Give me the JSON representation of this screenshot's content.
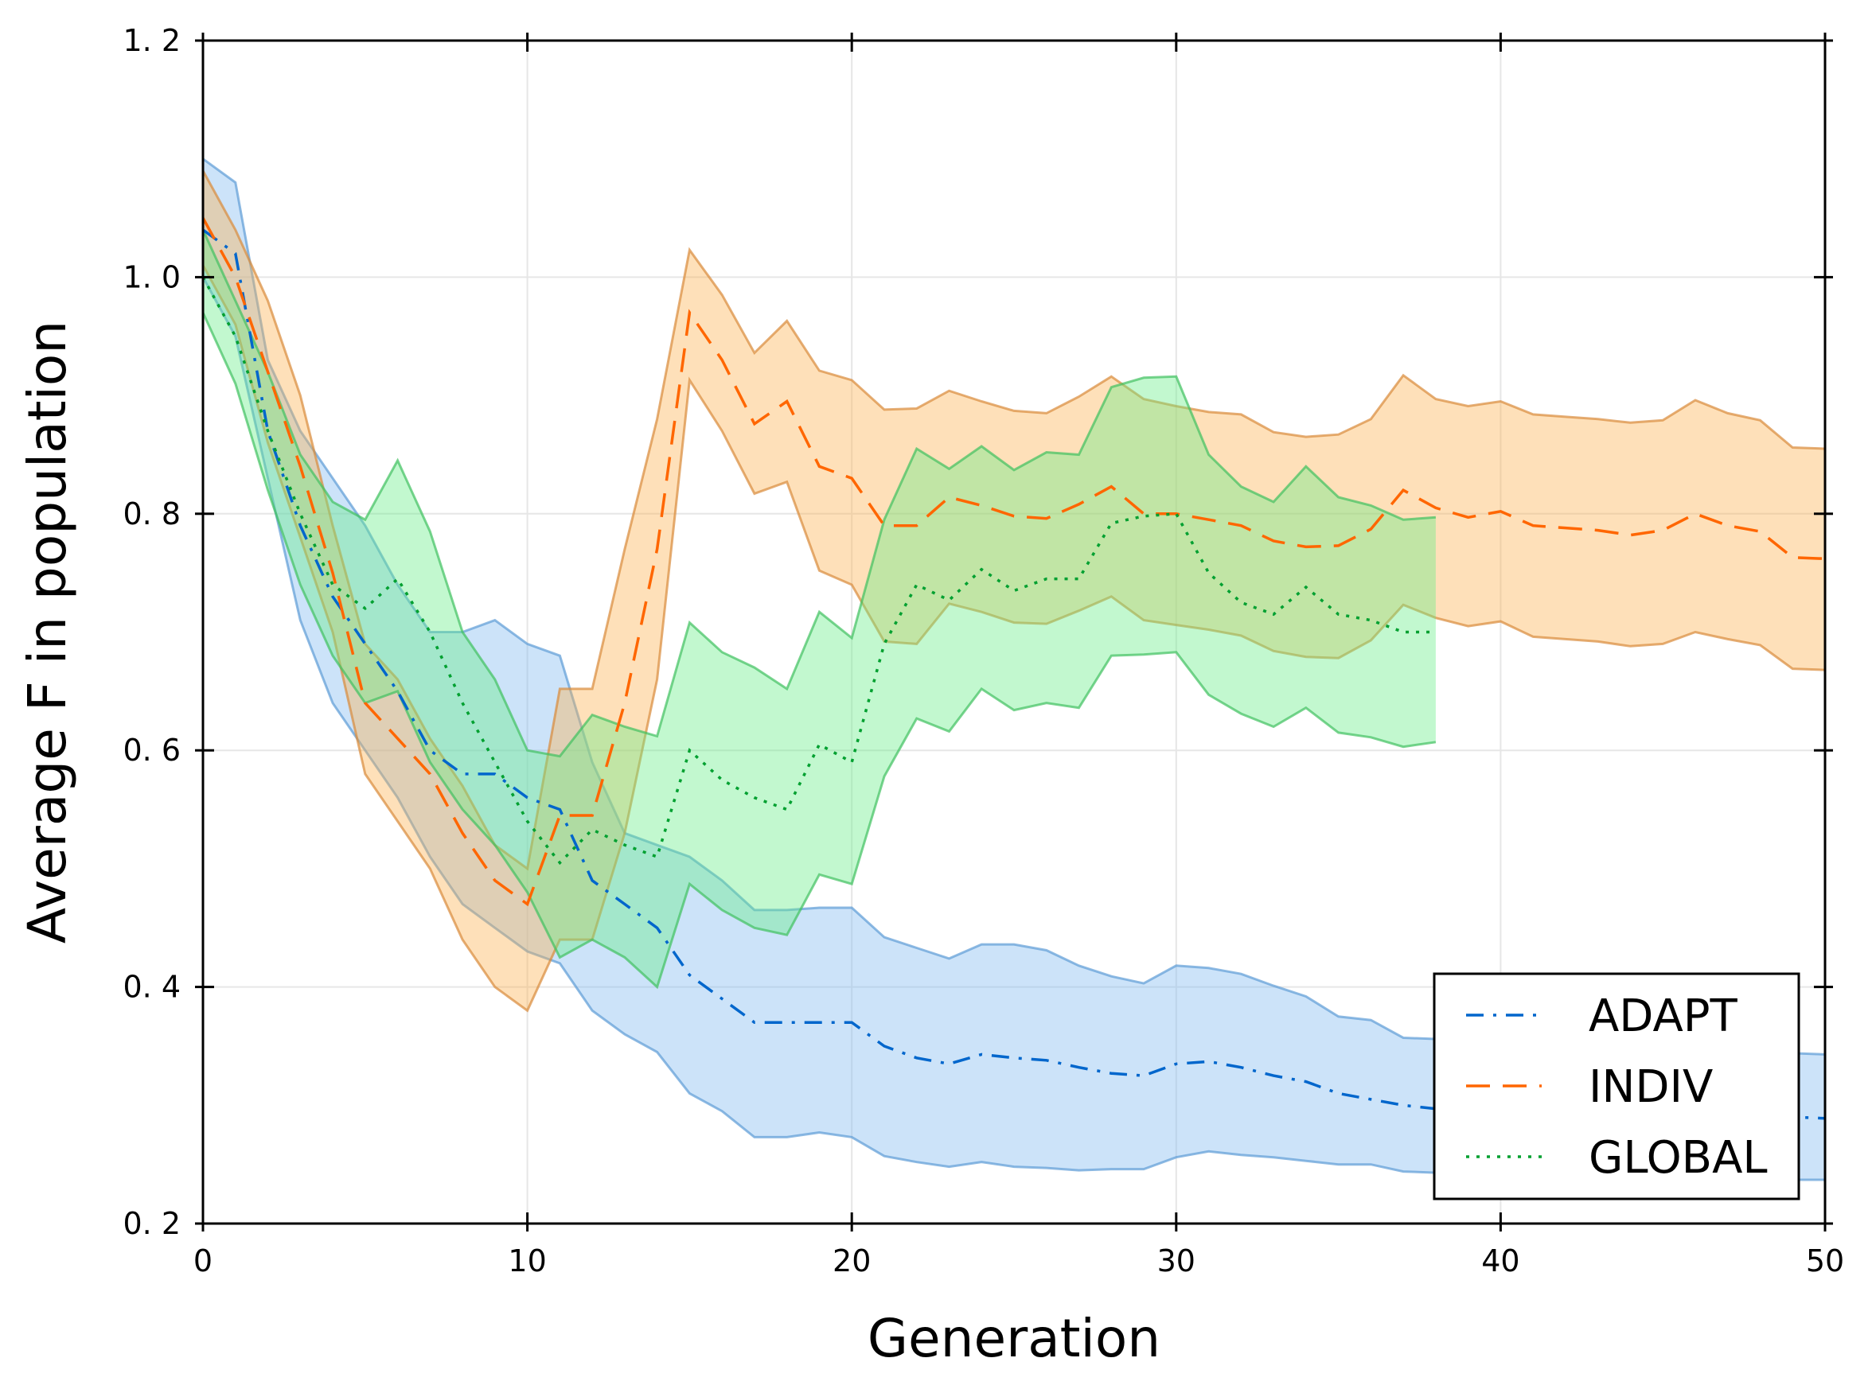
{
  "chart_data": {
    "type": "line",
    "title": "",
    "xlabel": "Generation",
    "ylabel": "Average F in population",
    "xlim": [
      0,
      50
    ],
    "ylim": [
      0.2,
      1.2
    ],
    "xticks": [
      0,
      10,
      20,
      30,
      40,
      50
    ],
    "xtick_labels": [
      "0",
      "10",
      "20",
      "30",
      "40",
      "50"
    ],
    "yticks": [
      0.2,
      0.4,
      0.6,
      0.8,
      1.0,
      1.2
    ],
    "ytick_labels": [
      "0. 2",
      "0. 4",
      "0. 6",
      "0. 8",
      "1. 0",
      "1. 2"
    ],
    "grid": true,
    "legend_position": "lower-right",
    "series": [
      {
        "name": "ADAPT",
        "color": "#0066cc",
        "band_color": "#7fb8f0",
        "band_edge_color": "#5c9bd5",
        "line_style": "dashdot",
        "x": [
          0,
          1,
          2,
          3,
          4,
          5,
          6,
          7,
          8,
          9,
          10,
          11,
          12,
          13,
          14,
          15,
          16,
          17,
          18,
          19,
          20,
          21,
          22,
          23,
          24,
          25,
          26,
          27,
          28,
          29,
          30,
          31,
          32,
          33,
          34,
          35,
          36,
          37,
          38,
          39,
          40,
          41,
          42,
          43,
          44,
          45,
          46,
          47,
          48,
          49,
          50
        ],
        "y": [
          1.04,
          1.02,
          0.87,
          0.79,
          0.73,
          0.69,
          0.65,
          0.6,
          0.58,
          0.58,
          0.56,
          0.55,
          0.49,
          0.47,
          0.45,
          0.41,
          0.39,
          0.37,
          0.37,
          0.37,
          0.37,
          0.35,
          0.34,
          0.335,
          0.343,
          0.34,
          0.338,
          0.332,
          0.327,
          0.325,
          0.335,
          0.337,
          0.332,
          0.325,
          0.32,
          0.31,
          0.305,
          0.3,
          0.297,
          0.296,
          0.295,
          0.294,
          0.293,
          0.293,
          0.292,
          0.292,
          0.291,
          0.291,
          0.29,
          0.29,
          0.289
        ],
        "upper": [
          1.1,
          1.08,
          0.93,
          0.87,
          0.83,
          0.79,
          0.74,
          0.7,
          0.7,
          0.71,
          0.69,
          0.68,
          0.59,
          0.53,
          0.52,
          0.51,
          0.49,
          0.465,
          0.465,
          0.467,
          0.467,
          0.442,
          0.433,
          0.424,
          0.436,
          0.436,
          0.431,
          0.418,
          0.409,
          0.403,
          0.418,
          0.416,
          0.411,
          0.401,
          0.392,
          0.375,
          0.372,
          0.357,
          0.356,
          0.355,
          0.354,
          0.352,
          0.351,
          0.35,
          0.349,
          0.348,
          0.347,
          0.346,
          0.345,
          0.344,
          0.343
        ],
        "lower": [
          1.0,
          0.95,
          0.83,
          0.71,
          0.64,
          0.6,
          0.56,
          0.51,
          0.47,
          0.45,
          0.43,
          0.42,
          0.38,
          0.36,
          0.345,
          0.31,
          0.295,
          0.273,
          0.273,
          0.277,
          0.273,
          0.257,
          0.252,
          0.248,
          0.252,
          0.248,
          0.247,
          0.245,
          0.246,
          0.246,
          0.256,
          0.261,
          0.258,
          0.256,
          0.253,
          0.25,
          0.25,
          0.244,
          0.243,
          0.243,
          0.242,
          0.241,
          0.24,
          0.24,
          0.239,
          0.239,
          0.238,
          0.238,
          0.237,
          0.237,
          0.237
        ]
      },
      {
        "name": "INDIV",
        "color": "#ff6600",
        "band_color": "#fdb24f",
        "band_edge_color": "#d98a3a",
        "line_style": "dashed",
        "x": [
          0,
          1,
          2,
          3,
          4,
          5,
          6,
          7,
          8,
          9,
          10,
          11,
          12,
          13,
          14,
          15,
          16,
          17,
          18,
          19,
          20,
          21,
          22,
          23,
          24,
          25,
          26,
          27,
          28,
          29,
          30,
          31,
          32,
          33,
          34,
          35,
          36,
          37,
          38,
          39,
          40,
          41,
          42,
          43,
          44,
          45,
          46,
          47,
          48,
          49,
          50
        ],
        "y": [
          1.05,
          1.0,
          0.92,
          0.84,
          0.75,
          0.64,
          0.61,
          0.58,
          0.53,
          0.49,
          0.47,
          0.545,
          0.545,
          0.64,
          0.77,
          0.97,
          0.93,
          0.876,
          0.895,
          0.84,
          0.83,
          0.79,
          0.79,
          0.814,
          0.807,
          0.798,
          0.796,
          0.808,
          0.823,
          0.8,
          0.8,
          0.795,
          0.79,
          0.777,
          0.772,
          0.773,
          0.787,
          0.82,
          0.805,
          0.797,
          0.802,
          0.79,
          0.788,
          0.786,
          0.782,
          0.786,
          0.8,
          0.79,
          0.785,
          0.763,
          0.762
        ],
        "upper": [
          1.09,
          1.04,
          0.98,
          0.9,
          0.79,
          0.69,
          0.66,
          0.61,
          0.57,
          0.52,
          0.5,
          0.652,
          0.652,
          0.77,
          0.88,
          1.023,
          0.985,
          0.936,
          0.963,
          0.921,
          0.913,
          0.888,
          0.889,
          0.904,
          0.895,
          0.887,
          0.885,
          0.899,
          0.916,
          0.897,
          0.891,
          0.886,
          0.884,
          0.869,
          0.865,
          0.867,
          0.88,
          0.917,
          0.897,
          0.891,
          0.895,
          0.884,
          0.882,
          0.88,
          0.877,
          0.879,
          0.896,
          0.885,
          0.879,
          0.856,
          0.855
        ],
        "lower": [
          1.01,
          0.96,
          0.86,
          0.78,
          0.7,
          0.58,
          0.54,
          0.5,
          0.44,
          0.4,
          0.38,
          0.44,
          0.44,
          0.53,
          0.66,
          0.913,
          0.87,
          0.817,
          0.827,
          0.752,
          0.74,
          0.692,
          0.69,
          0.724,
          0.717,
          0.708,
          0.707,
          0.718,
          0.73,
          0.71,
          0.706,
          0.702,
          0.697,
          0.684,
          0.679,
          0.678,
          0.693,
          0.723,
          0.712,
          0.705,
          0.709,
          0.696,
          0.694,
          0.692,
          0.688,
          0.69,
          0.7,
          0.694,
          0.689,
          0.669,
          0.668
        ]
      },
      {
        "name": "GLOBAL",
        "color": "#00a030",
        "band_color": "#66ee88",
        "band_edge_color": "#40c060",
        "line_style": "dotted",
        "x": [
          0,
          1,
          2,
          3,
          4,
          5,
          6,
          7,
          8,
          9,
          10,
          11,
          12,
          13,
          14,
          15,
          16,
          17,
          18,
          19,
          20,
          21,
          22,
          23,
          24,
          25,
          26,
          27,
          28,
          29,
          30,
          31,
          32,
          33,
          34,
          35,
          36,
          37,
          38
        ],
        "y": [
          1.0,
          0.95,
          0.87,
          0.8,
          0.74,
          0.72,
          0.745,
          0.7,
          0.64,
          0.59,
          0.54,
          0.505,
          0.533,
          0.52,
          0.51,
          0.6,
          0.575,
          0.56,
          0.55,
          0.605,
          0.59,
          0.69,
          0.74,
          0.727,
          0.753,
          0.735,
          0.745,
          0.745,
          0.792,
          0.798,
          0.8,
          0.75,
          0.725,
          0.715,
          0.738,
          0.715,
          0.71,
          0.7,
          0.7
        ],
        "upper": [
          1.04,
          0.98,
          0.92,
          0.85,
          0.81,
          0.795,
          0.845,
          0.785,
          0.7,
          0.66,
          0.6,
          0.595,
          0.63,
          0.62,
          0.612,
          0.708,
          0.683,
          0.67,
          0.652,
          0.717,
          0.695,
          0.795,
          0.855,
          0.838,
          0.857,
          0.837,
          0.852,
          0.85,
          0.907,
          0.915,
          0.916,
          0.85,
          0.823,
          0.81,
          0.84,
          0.814,
          0.807,
          0.795,
          0.797
        ],
        "lower": [
          0.97,
          0.91,
          0.82,
          0.74,
          0.68,
          0.64,
          0.65,
          0.59,
          0.55,
          0.52,
          0.48,
          0.425,
          0.44,
          0.425,
          0.4,
          0.487,
          0.465,
          0.45,
          0.444,
          0.495,
          0.487,
          0.578,
          0.627,
          0.616,
          0.652,
          0.634,
          0.64,
          0.636,
          0.68,
          0.681,
          0.683,
          0.647,
          0.631,
          0.62,
          0.636,
          0.615,
          0.611,
          0.603,
          0.607
        ]
      }
    ]
  }
}
